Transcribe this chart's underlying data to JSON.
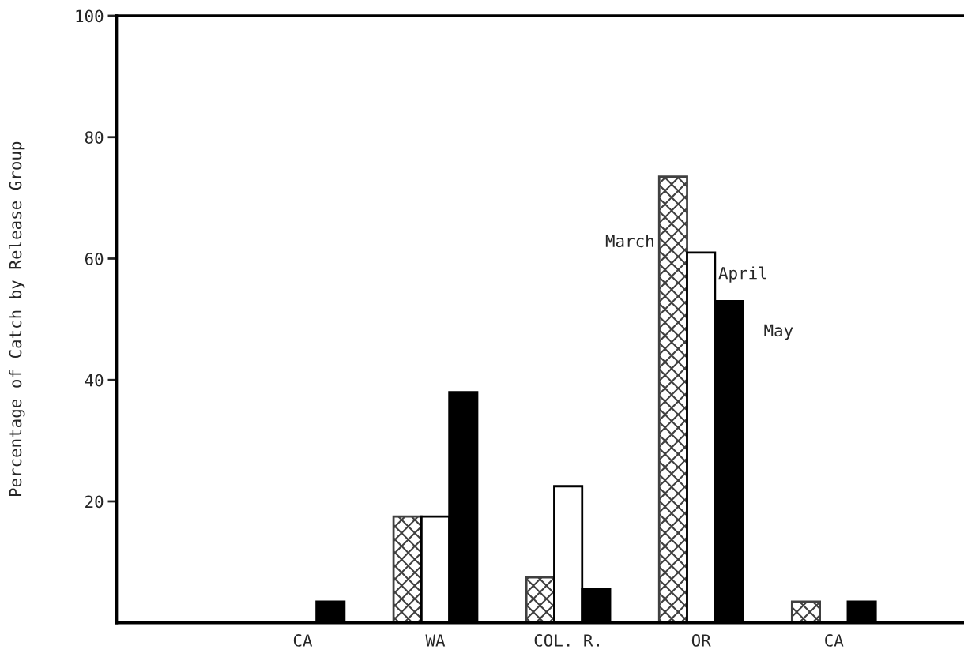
{
  "chart_data": {
    "type": "bar",
    "ylabel": "Percentage of Catch by Release Group",
    "categories": [
      "CA",
      "WA",
      "COL. R.",
      "OR",
      "CA"
    ],
    "series": [
      {
        "name": "March",
        "color": "#404040",
        "values": [
          null,
          17.5,
          7.5,
          73.5,
          3.5
        ]
      },
      {
        "name": "April",
        "color": "#ffffff",
        "values": [
          null,
          17.5,
          22.5,
          61,
          null
        ]
      },
      {
        "name": "May",
        "color": "#000000",
        "values": [
          3.5,
          38,
          5.5,
          53,
          3.5
        ]
      }
    ],
    "ylim": [
      0,
      100
    ],
    "yticks": [
      20,
      40,
      60,
      80,
      100
    ],
    "grid": false,
    "legend": false
  }
}
